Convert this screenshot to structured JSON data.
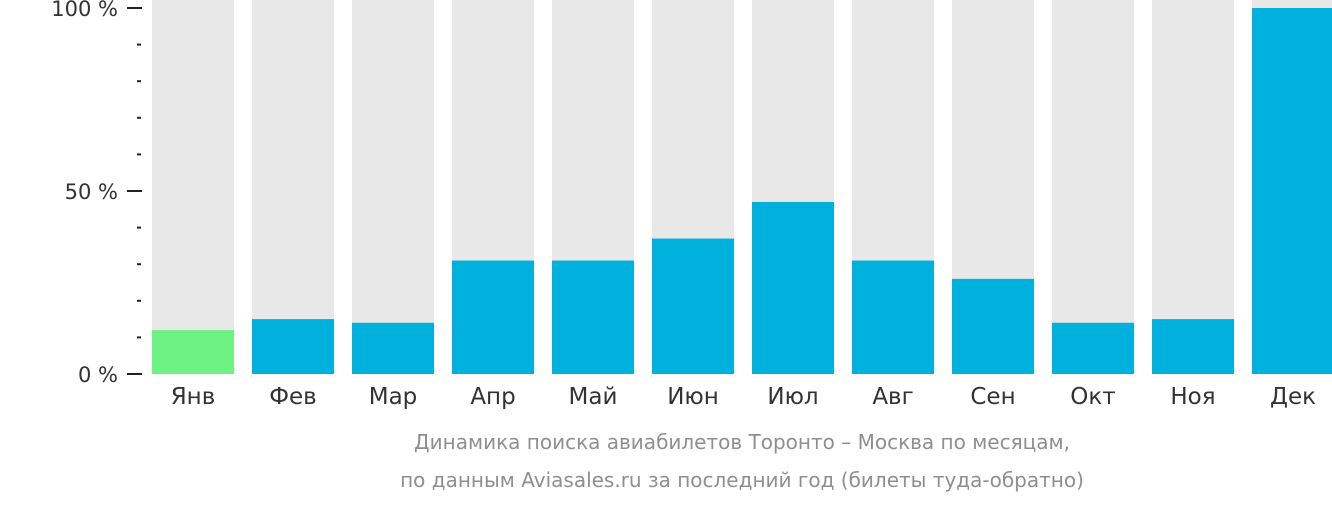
{
  "chart_data": {
    "type": "bar",
    "categories": [
      "Янв",
      "Фев",
      "Мар",
      "Апр",
      "Май",
      "Июн",
      "Июл",
      "Авг",
      "Сен",
      "Окт",
      "Ноя",
      "Дек"
    ],
    "values": [
      12,
      15,
      14,
      31,
      31,
      37,
      47,
      31,
      26,
      14,
      15,
      100
    ],
    "ylim": [
      0,
      100
    ],
    "y_ticks": [
      {
        "value": 0,
        "label": "0 %"
      },
      {
        "value": 50,
        "label": "50 %"
      },
      {
        "value": 100,
        "label": "100 %"
      }
    ],
    "minor_tick_step": 10,
    "highlight_category": "Янв",
    "colors": {
      "bar": "#00b0dd",
      "highlight": "#6ef284",
      "track": "#e8e8e8",
      "axis": "#222222"
    },
    "caption": [
      "Динамика поиска авиабилетов Торонто – Москва по месяцам,",
      "по данным Aviasales.ru за последний год (билеты туда-обратно)"
    ]
  }
}
